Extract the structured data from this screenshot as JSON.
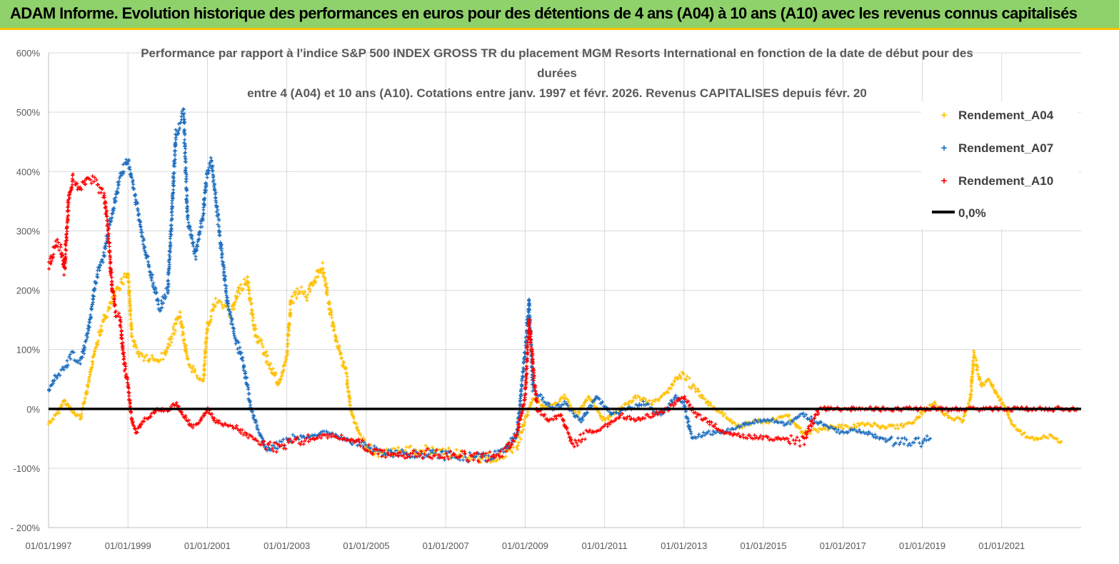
{
  "banner": {
    "title": "ADAM Informe. Evolution historique des performances en euros pour des détentions de 4 ans (A04) à 10 ans (A10) avec les revenus connus capitalisés"
  },
  "chart_data": {
    "type": "scatter",
    "title": [
      "Performance par rapport à l'indice S&P 500 INDEX GROSS TR  du placement MGM Resorts International en fonction de la date de début pour des",
      "durées",
      "entre 4 (A04) et 10 ans (A10).  Cotations entre janv. 1997 et févr.  2026. Revenus CAPITALISES depuis févr. 20"
    ],
    "x_range": [
      1997.0,
      2023.0
    ],
    "ylim": [
      -200,
      600
    ],
    "y_ticks": [
      -200,
      -100,
      0,
      100,
      200,
      300,
      400,
      500,
      600
    ],
    "y_tick_labels": [
      "- 200%",
      "-100%",
      "0%",
      "100%",
      "200%",
      "300%",
      "400%",
      "500%",
      "600%"
    ],
    "x_ticks": [
      1997,
      1999,
      2001,
      2003,
      2005,
      2007,
      2009,
      2011,
      2013,
      2015,
      2017,
      2019,
      2021
    ],
    "x_tick_labels": [
      "01/01/1997",
      "01/01/1999",
      "01/01/2001",
      "01/01/2003",
      "01/01/2005",
      "01/01/2007",
      "01/01/2009",
      "01/01/2011",
      "01/01/2013",
      "01/01/2015",
      "01/01/2017",
      "01/01/2019",
      "01/01/2021"
    ],
    "reference_line": {
      "name": "0,0%",
      "y": 0,
      "color": "#000000"
    },
    "legend_position": "top-right",
    "series": [
      {
        "name": "Rendement_A04",
        "color": "#ffc000",
        "marker": "+",
        "points": [
          [
            1997.0,
            -25
          ],
          [
            1997.2,
            -10
          ],
          [
            1997.4,
            15
          ],
          [
            1997.6,
            -5
          ],
          [
            1997.8,
            -15
          ],
          [
            1998.0,
            40
          ],
          [
            1998.2,
            110
          ],
          [
            1998.4,
            150
          ],
          [
            1998.6,
            180
          ],
          [
            1998.8,
            210
          ],
          [
            1999.0,
            230
          ],
          [
            1999.1,
            120
          ],
          [
            1999.3,
            90
          ],
          [
            1999.5,
            85
          ],
          [
            1999.7,
            80
          ],
          [
            1999.9,
            90
          ],
          [
            2000.1,
            120
          ],
          [
            2000.3,
            160
          ],
          [
            2000.5,
            80
          ],
          [
            2000.7,
            60
          ],
          [
            2000.9,
            50
          ],
          [
            2001.0,
            140
          ],
          [
            2001.2,
            180
          ],
          [
            2001.4,
            175
          ],
          [
            2001.6,
            160
          ],
          [
            2001.8,
            200
          ],
          [
            2002.0,
            220
          ],
          [
            2002.2,
            130
          ],
          [
            2002.4,
            100
          ],
          [
            2002.6,
            70
          ],
          [
            2002.8,
            40
          ],
          [
            2003.0,
            90
          ],
          [
            2003.1,
            180
          ],
          [
            2003.3,
            200
          ],
          [
            2003.5,
            190
          ],
          [
            2003.7,
            220
          ],
          [
            2003.9,
            240
          ],
          [
            2004.1,
            160
          ],
          [
            2004.3,
            100
          ],
          [
            2004.5,
            60
          ],
          [
            2004.6,
            0
          ],
          [
            2004.8,
            -40
          ],
          [
            2005.0,
            -60
          ],
          [
            2005.3,
            -80
          ],
          [
            2005.6,
            -75
          ],
          [
            2006.0,
            -70
          ],
          [
            2006.5,
            -70
          ],
          [
            2007.0,
            -72
          ],
          [
            2007.5,
            -80
          ],
          [
            2007.8,
            -84
          ],
          [
            2008.2,
            -82
          ],
          [
            2008.5,
            -75
          ],
          [
            2008.8,
            -60
          ],
          [
            2009.0,
            -20
          ],
          [
            2009.2,
            20
          ],
          [
            2009.5,
            0
          ],
          [
            2009.8,
            10
          ],
          [
            2010.0,
            20
          ],
          [
            2010.3,
            -10
          ],
          [
            2010.6,
            20
          ],
          [
            2011.0,
            -20
          ],
          [
            2011.4,
            0
          ],
          [
            2011.8,
            20
          ],
          [
            2012.2,
            10
          ],
          [
            2012.6,
            30
          ],
          [
            2012.9,
            60
          ],
          [
            2013.2,
            40
          ],
          [
            2013.6,
            10
          ],
          [
            2014.0,
            -10
          ],
          [
            2014.4,
            -30
          ],
          [
            2014.8,
            -20
          ],
          [
            2015.2,
            -20
          ],
          [
            2015.6,
            -10
          ],
          [
            2016.0,
            -40
          ],
          [
            2016.4,
            -35
          ],
          [
            2016.8,
            -30
          ],
          [
            2017.2,
            -30
          ],
          [
            2017.6,
            -25
          ],
          [
            2018.0,
            -30
          ],
          [
            2018.4,
            -30
          ],
          [
            2018.8,
            -20
          ],
          [
            2019.1,
            0
          ],
          [
            2019.3,
            10
          ],
          [
            2019.6,
            -10
          ],
          [
            2020.0,
            -20
          ],
          [
            2020.2,
            10
          ],
          [
            2020.3,
            90
          ],
          [
            2020.5,
            40
          ],
          [
            2020.7,
            50
          ],
          [
            2020.9,
            20
          ],
          [
            2021.1,
            0
          ],
          [
            2021.3,
            -30
          ],
          [
            2021.6,
            -45
          ],
          [
            2021.9,
            -50
          ],
          [
            2022.2,
            -45
          ],
          [
            2022.5,
            -55
          ]
        ]
      },
      {
        "name": "Rendement_A07",
        "color": "#1f6fbf",
        "marker": "+",
        "points": [
          [
            1997.0,
            30
          ],
          [
            1997.2,
            60
          ],
          [
            1997.4,
            70
          ],
          [
            1997.6,
            90
          ],
          [
            1997.8,
            80
          ],
          [
            1998.0,
            130
          ],
          [
            1998.2,
            220
          ],
          [
            1998.4,
            260
          ],
          [
            1998.6,
            330
          ],
          [
            1998.8,
            390
          ],
          [
            1999.0,
            420
          ],
          [
            1999.2,
            350
          ],
          [
            1999.4,
            280
          ],
          [
            1999.6,
            220
          ],
          [
            1999.8,
            170
          ],
          [
            2000.0,
            200
          ],
          [
            2000.1,
            320
          ],
          [
            2000.2,
            460
          ],
          [
            2000.3,
            480
          ],
          [
            2000.4,
            500
          ],
          [
            2000.5,
            320
          ],
          [
            2000.7,
            260
          ],
          [
            2000.9,
            330
          ],
          [
            2001.0,
            400
          ],
          [
            2001.1,
            420
          ],
          [
            2001.3,
            300
          ],
          [
            2001.5,
            180
          ],
          [
            2001.7,
            120
          ],
          [
            2001.9,
            80
          ],
          [
            2002.1,
            0
          ],
          [
            2002.3,
            -40
          ],
          [
            2002.5,
            -70
          ],
          [
            2002.8,
            -60
          ],
          [
            2003.2,
            -50
          ],
          [
            2003.6,
            -45
          ],
          [
            2004.0,
            -40
          ],
          [
            2004.4,
            -50
          ],
          [
            2004.8,
            -60
          ],
          [
            2005.2,
            -70
          ],
          [
            2005.6,
            -72
          ],
          [
            2006.0,
            -75
          ],
          [
            2006.5,
            -75
          ],
          [
            2007.0,
            -78
          ],
          [
            2007.5,
            -82
          ],
          [
            2008.0,
            -82
          ],
          [
            2008.5,
            -70
          ],
          [
            2008.8,
            -40
          ],
          [
            2009.0,
            100
          ],
          [
            2009.1,
            180
          ],
          [
            2009.2,
            30
          ],
          [
            2009.4,
            20
          ],
          [
            2009.7,
            0
          ],
          [
            2010.0,
            10
          ],
          [
            2010.4,
            -20
          ],
          [
            2010.8,
            20
          ],
          [
            2011.2,
            -10
          ],
          [
            2011.6,
            0
          ],
          [
            2012.0,
            10
          ],
          [
            2012.4,
            -10
          ],
          [
            2012.8,
            20
          ],
          [
            2013.0,
            10
          ],
          [
            2013.2,
            -50
          ],
          [
            2013.6,
            -40
          ],
          [
            2014.0,
            -40
          ],
          [
            2014.4,
            -30
          ],
          [
            2014.8,
            -20
          ],
          [
            2015.2,
            -20
          ],
          [
            2015.6,
            -25
          ],
          [
            2016.0,
            -10
          ],
          [
            2016.3,
            -20
          ],
          [
            2016.6,
            -30
          ],
          [
            2017.0,
            -40
          ],
          [
            2017.4,
            -35
          ],
          [
            2017.8,
            -45
          ],
          [
            2018.2,
            -55
          ],
          [
            2018.6,
            -55
          ],
          [
            2019.0,
            -55
          ],
          [
            2019.2,
            -50
          ]
        ]
      },
      {
        "name": "Rendement_A10",
        "color": "#ff0000",
        "marker": "+",
        "points": [
          [
            1997.0,
            240
          ],
          [
            1997.1,
            260
          ],
          [
            1997.2,
            280
          ],
          [
            1997.3,
            270
          ],
          [
            1997.4,
            230
          ],
          [
            1997.5,
            350
          ],
          [
            1997.6,
            390
          ],
          [
            1997.8,
            370
          ],
          [
            1998.0,
            390
          ],
          [
            1998.2,
            380
          ],
          [
            1998.4,
            360
          ],
          [
            1998.5,
            300
          ],
          [
            1998.6,
            200
          ],
          [
            1998.7,
            160
          ],
          [
            1998.8,
            150
          ],
          [
            1998.9,
            80
          ],
          [
            1999.0,
            40
          ],
          [
            1999.1,
            -20
          ],
          [
            1999.2,
            -40
          ],
          [
            1999.4,
            -20
          ],
          [
            1999.6,
            -10
          ],
          [
            1999.8,
            0
          ],
          [
            2000.0,
            -5
          ],
          [
            2000.2,
            10
          ],
          [
            2000.4,
            -10
          ],
          [
            2000.6,
            -30
          ],
          [
            2000.8,
            -25
          ],
          [
            2001.0,
            0
          ],
          [
            2001.2,
            -20
          ],
          [
            2001.4,
            -25
          ],
          [
            2001.7,
            -30
          ],
          [
            2002.0,
            -45
          ],
          [
            2002.4,
            -60
          ],
          [
            2002.8,
            -65
          ],
          [
            2003.2,
            -55
          ],
          [
            2003.6,
            -50
          ],
          [
            2004.0,
            -45
          ],
          [
            2004.4,
            -48
          ],
          [
            2004.8,
            -55
          ],
          [
            2005.2,
            -72
          ],
          [
            2005.6,
            -78
          ],
          [
            2006.0,
            -75
          ],
          [
            2006.5,
            -75
          ],
          [
            2007.0,
            -78
          ],
          [
            2007.5,
            -80
          ],
          [
            2008.0,
            -82
          ],
          [
            2008.5,
            -70
          ],
          [
            2008.8,
            -40
          ],
          [
            2009.0,
            20
          ],
          [
            2009.1,
            150
          ],
          [
            2009.3,
            0
          ],
          [
            2009.6,
            -20
          ],
          [
            2009.9,
            -10
          ],
          [
            2010.2,
            -60
          ],
          [
            2010.6,
            -40
          ],
          [
            2011.0,
            -30
          ],
          [
            2011.4,
            -10
          ],
          [
            2011.8,
            -20
          ],
          [
            2012.2,
            -10
          ],
          [
            2012.6,
            0
          ],
          [
            2013.0,
            20
          ],
          [
            2013.3,
            -10
          ],
          [
            2013.6,
            -20
          ],
          [
            2014.0,
            -40
          ],
          [
            2014.4,
            -45
          ],
          [
            2014.8,
            -48
          ],
          [
            2015.2,
            -50
          ],
          [
            2015.6,
            -52
          ],
          [
            2016.0,
            -55
          ],
          [
            2016.4,
            0
          ],
          [
            2017.0,
            0
          ],
          [
            2018.0,
            0
          ],
          [
            2019.0,
            0
          ],
          [
            2020.0,
            0
          ],
          [
            2021.0,
            0
          ],
          [
            2022.0,
            0
          ],
          [
            2022.9,
            0
          ]
        ]
      }
    ]
  }
}
